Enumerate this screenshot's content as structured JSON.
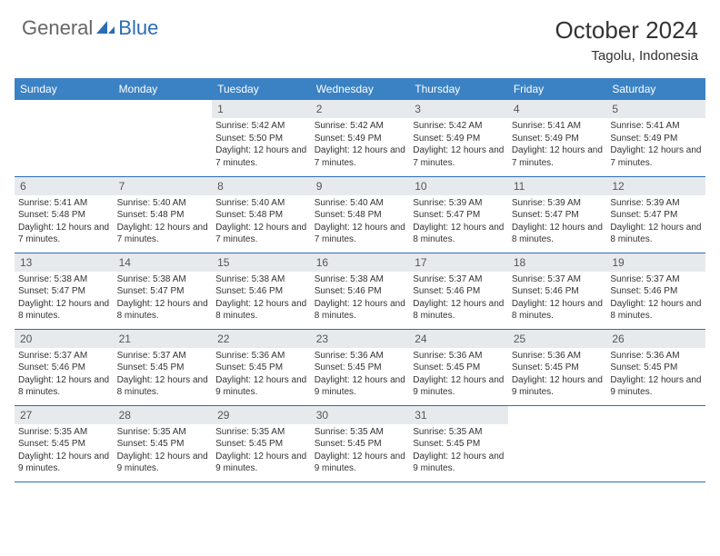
{
  "logo": {
    "part1": "General",
    "part2": "Blue"
  },
  "title": "October 2024",
  "location": "Tagolu, Indonesia",
  "header_bg": "#3b82c4",
  "header_text": "#ffffff",
  "daynum_bg": "#e7eaed",
  "border_color": "#2a6db5",
  "days": [
    "Sunday",
    "Monday",
    "Tuesday",
    "Wednesday",
    "Thursday",
    "Friday",
    "Saturday"
  ],
  "weeks": [
    [
      null,
      null,
      {
        "n": "1",
        "sr": "Sunrise: 5:42 AM",
        "ss": "Sunset: 5:50 PM",
        "dl": "Daylight: 12 hours and 7 minutes."
      },
      {
        "n": "2",
        "sr": "Sunrise: 5:42 AM",
        "ss": "Sunset: 5:49 PM",
        "dl": "Daylight: 12 hours and 7 minutes."
      },
      {
        "n": "3",
        "sr": "Sunrise: 5:42 AM",
        "ss": "Sunset: 5:49 PM",
        "dl": "Daylight: 12 hours and 7 minutes."
      },
      {
        "n": "4",
        "sr": "Sunrise: 5:41 AM",
        "ss": "Sunset: 5:49 PM",
        "dl": "Daylight: 12 hours and 7 minutes."
      },
      {
        "n": "5",
        "sr": "Sunrise: 5:41 AM",
        "ss": "Sunset: 5:49 PM",
        "dl": "Daylight: 12 hours and 7 minutes."
      }
    ],
    [
      {
        "n": "6",
        "sr": "Sunrise: 5:41 AM",
        "ss": "Sunset: 5:48 PM",
        "dl": "Daylight: 12 hours and 7 minutes."
      },
      {
        "n": "7",
        "sr": "Sunrise: 5:40 AM",
        "ss": "Sunset: 5:48 PM",
        "dl": "Daylight: 12 hours and 7 minutes."
      },
      {
        "n": "8",
        "sr": "Sunrise: 5:40 AM",
        "ss": "Sunset: 5:48 PM",
        "dl": "Daylight: 12 hours and 7 minutes."
      },
      {
        "n": "9",
        "sr": "Sunrise: 5:40 AM",
        "ss": "Sunset: 5:48 PM",
        "dl": "Daylight: 12 hours and 7 minutes."
      },
      {
        "n": "10",
        "sr": "Sunrise: 5:39 AM",
        "ss": "Sunset: 5:47 PM",
        "dl": "Daylight: 12 hours and 8 minutes."
      },
      {
        "n": "11",
        "sr": "Sunrise: 5:39 AM",
        "ss": "Sunset: 5:47 PM",
        "dl": "Daylight: 12 hours and 8 minutes."
      },
      {
        "n": "12",
        "sr": "Sunrise: 5:39 AM",
        "ss": "Sunset: 5:47 PM",
        "dl": "Daylight: 12 hours and 8 minutes."
      }
    ],
    [
      {
        "n": "13",
        "sr": "Sunrise: 5:38 AM",
        "ss": "Sunset: 5:47 PM",
        "dl": "Daylight: 12 hours and 8 minutes."
      },
      {
        "n": "14",
        "sr": "Sunrise: 5:38 AM",
        "ss": "Sunset: 5:47 PM",
        "dl": "Daylight: 12 hours and 8 minutes."
      },
      {
        "n": "15",
        "sr": "Sunrise: 5:38 AM",
        "ss": "Sunset: 5:46 PM",
        "dl": "Daylight: 12 hours and 8 minutes."
      },
      {
        "n": "16",
        "sr": "Sunrise: 5:38 AM",
        "ss": "Sunset: 5:46 PM",
        "dl": "Daylight: 12 hours and 8 minutes."
      },
      {
        "n": "17",
        "sr": "Sunrise: 5:37 AM",
        "ss": "Sunset: 5:46 PM",
        "dl": "Daylight: 12 hours and 8 minutes."
      },
      {
        "n": "18",
        "sr": "Sunrise: 5:37 AM",
        "ss": "Sunset: 5:46 PM",
        "dl": "Daylight: 12 hours and 8 minutes."
      },
      {
        "n": "19",
        "sr": "Sunrise: 5:37 AM",
        "ss": "Sunset: 5:46 PM",
        "dl": "Daylight: 12 hours and 8 minutes."
      }
    ],
    [
      {
        "n": "20",
        "sr": "Sunrise: 5:37 AM",
        "ss": "Sunset: 5:46 PM",
        "dl": "Daylight: 12 hours and 8 minutes."
      },
      {
        "n": "21",
        "sr": "Sunrise: 5:37 AM",
        "ss": "Sunset: 5:45 PM",
        "dl": "Daylight: 12 hours and 8 minutes."
      },
      {
        "n": "22",
        "sr": "Sunrise: 5:36 AM",
        "ss": "Sunset: 5:45 PM",
        "dl": "Daylight: 12 hours and 9 minutes."
      },
      {
        "n": "23",
        "sr": "Sunrise: 5:36 AM",
        "ss": "Sunset: 5:45 PM",
        "dl": "Daylight: 12 hours and 9 minutes."
      },
      {
        "n": "24",
        "sr": "Sunrise: 5:36 AM",
        "ss": "Sunset: 5:45 PM",
        "dl": "Daylight: 12 hours and 9 minutes."
      },
      {
        "n": "25",
        "sr": "Sunrise: 5:36 AM",
        "ss": "Sunset: 5:45 PM",
        "dl": "Daylight: 12 hours and 9 minutes."
      },
      {
        "n": "26",
        "sr": "Sunrise: 5:36 AM",
        "ss": "Sunset: 5:45 PM",
        "dl": "Daylight: 12 hours and 9 minutes."
      }
    ],
    [
      {
        "n": "27",
        "sr": "Sunrise: 5:35 AM",
        "ss": "Sunset: 5:45 PM",
        "dl": "Daylight: 12 hours and 9 minutes."
      },
      {
        "n": "28",
        "sr": "Sunrise: 5:35 AM",
        "ss": "Sunset: 5:45 PM",
        "dl": "Daylight: 12 hours and 9 minutes."
      },
      {
        "n": "29",
        "sr": "Sunrise: 5:35 AM",
        "ss": "Sunset: 5:45 PM",
        "dl": "Daylight: 12 hours and 9 minutes."
      },
      {
        "n": "30",
        "sr": "Sunrise: 5:35 AM",
        "ss": "Sunset: 5:45 PM",
        "dl": "Daylight: 12 hours and 9 minutes."
      },
      {
        "n": "31",
        "sr": "Sunrise: 5:35 AM",
        "ss": "Sunset: 5:45 PM",
        "dl": "Daylight: 12 hours and 9 minutes."
      },
      null,
      null
    ]
  ]
}
